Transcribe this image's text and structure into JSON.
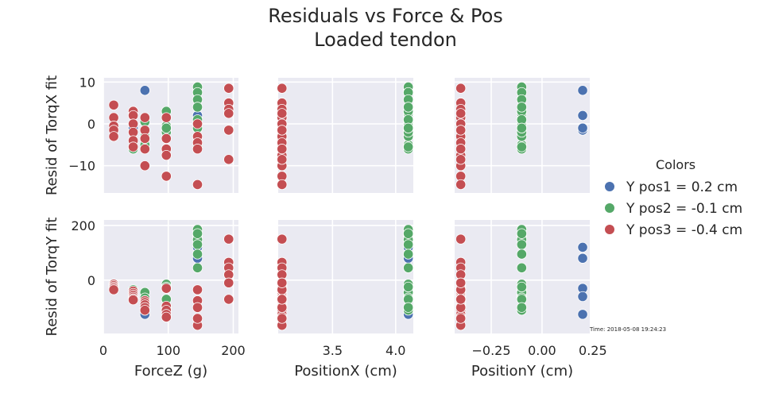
{
  "title_line1": "Residuals vs Force & Pos",
  "title_line2": "Loaded tendon",
  "timestamp": "Time: 2018-05-08 19:24:23",
  "legend": {
    "title": "Colors",
    "items": [
      {
        "label": "Y pos1 = 0.2 cm",
        "color": "#4c72b0"
      },
      {
        "label": "Y pos2 = -0.1 cm",
        "color": "#55a868"
      },
      {
        "label": "Y pos3 = -0.4 cm",
        "color": "#c44e52"
      }
    ]
  },
  "colors": {
    "plot_bg": "#eaeaf2",
    "grid": "#ffffff",
    "text": "#262626"
  },
  "chart_data": {
    "type": "scatter",
    "title": "Residuals vs Force & Pos\nLoaded tendon",
    "x_columns": [
      {
        "label": "ForceZ (g)",
        "ticks": [
          0,
          100,
          200
        ],
        "tick_labels": [
          "0",
          "100",
          "200"
        ],
        "xlim": [
          0,
          208
        ]
      },
      {
        "label": "PositionX (cm)",
        "ticks": [
          3.5,
          4.0
        ],
        "tick_labels": [
          "3.5",
          "4.0"
        ],
        "xlim": [
          3.07,
          4.14
        ]
      },
      {
        "label": "PositionY (cm)",
        "ticks": [
          -0.25,
          0.0,
          0.25
        ],
        "tick_labels": [
          "−0.25",
          "0.00",
          "0.25"
        ],
        "xlim": [
          -0.43,
          0.235
        ]
      }
    ],
    "y_rows": [
      {
        "label": "Resid of TorqX fit",
        "ticks": [
          -10,
          0,
          10
        ],
        "tick_labels": [
          "−10",
          "0",
          "10"
        ],
        "ylim": [
          -16.5,
          11
        ]
      },
      {
        "label": "Resid of TorqY fit",
        "ticks": [
          0,
          200
        ],
        "tick_labels": [
          "0",
          "200"
        ],
        "ylim": [
          -195,
          220
        ]
      }
    ],
    "series": [
      {
        "name": "Y pos1 = 0.2 cm",
        "color": "#4c72b0",
        "posX": 4.1,
        "posY": 0.2,
        "points": [
          {
            "force": 64,
            "rx": 8.0,
            "ry": -125
          },
          {
            "force": 145,
            "rx": 2.0,
            "ry": 80
          },
          {
            "force": 145,
            "rx": -1.0,
            "ry": 120
          },
          {
            "force": 97,
            "rx": -1.5,
            "ry": -30
          },
          {
            "force": 46,
            "rx": -1.0,
            "ry": -60
          }
        ]
      },
      {
        "name": "Y pos2 = -0.1 cm",
        "color": "#55a868",
        "posX": 4.1,
        "posY": -0.1,
        "points": [
          {
            "force": 46,
            "rx": -6.0,
            "ry": -35
          },
          {
            "force": 46,
            "rx": 2.5,
            "ry": -55
          },
          {
            "force": 64,
            "rx": 0.5,
            "ry": -45
          },
          {
            "force": 64,
            "rx": -5.0,
            "ry": -65
          },
          {
            "force": 64,
            "rx": -3.0,
            "ry": -110
          },
          {
            "force": 97,
            "rx": 3.0,
            "ry": -15
          },
          {
            "force": 97,
            "rx": -0.5,
            "ry": -25
          },
          {
            "force": 97,
            "rx": -2.0,
            "ry": -70
          },
          {
            "force": 97,
            "rx": -1.0,
            "ry": -100
          },
          {
            "force": 145,
            "rx": 8.8,
            "ry": 185
          },
          {
            "force": 145,
            "rx": 7.5,
            "ry": 165
          },
          {
            "force": 145,
            "rx": 5.8,
            "ry": 148
          },
          {
            "force": 145,
            "rx": 4.0,
            "ry": 130
          },
          {
            "force": 145,
            "rx": 1.0,
            "ry": 45
          },
          {
            "force": 145,
            "rx": -1.0,
            "ry": 95
          },
          {
            "force": 145,
            "rx": -5.5,
            "ry": 170
          }
        ]
      },
      {
        "name": "Y pos3 = -0.4 cm",
        "color": "#c44e52",
        "posX": 3.1,
        "posY": -0.4,
        "points": [
          {
            "force": 16,
            "rx": 4.5,
            "ry": -15
          },
          {
            "force": 16,
            "rx": 1.5,
            "ry": -20
          },
          {
            "force": 16,
            "rx": -0.5,
            "ry": -25
          },
          {
            "force": 16,
            "rx": -1.5,
            "ry": -30
          },
          {
            "force": 16,
            "rx": -3.0,
            "ry": -35
          },
          {
            "force": 46,
            "rx": 3.0,
            "ry": -40
          },
          {
            "force": 46,
            "rx": 2.0,
            "ry": -48
          },
          {
            "force": 46,
            "rx": 0.0,
            "ry": -55
          },
          {
            "force": 46,
            "rx": -2.0,
            "ry": -62
          },
          {
            "force": 46,
            "rx": -4.0,
            "ry": -68
          },
          {
            "force": 46,
            "rx": -5.5,
            "ry": -72
          },
          {
            "force": 64,
            "rx": 1.5,
            "ry": -75
          },
          {
            "force": 64,
            "rx": -1.5,
            "ry": -82
          },
          {
            "force": 64,
            "rx": -3.5,
            "ry": -90
          },
          {
            "force": 64,
            "rx": -6.0,
            "ry": -100
          },
          {
            "force": 64,
            "rx": -10.0,
            "ry": -110
          },
          {
            "force": 97,
            "rx": 1.5,
            "ry": -30
          },
          {
            "force": 97,
            "rx": -3.5,
            "ry": -95
          },
          {
            "force": 97,
            "rx": -6.0,
            "ry": -110
          },
          {
            "force": 97,
            "rx": -7.5,
            "ry": -125
          },
          {
            "force": 97,
            "rx": -12.5,
            "ry": -135
          },
          {
            "force": 145,
            "rx": -3.0,
            "ry": -35
          },
          {
            "force": 145,
            "rx": -4.5,
            "ry": -75
          },
          {
            "force": 145,
            "rx": -6.0,
            "ry": -100
          },
          {
            "force": 145,
            "rx": -14.5,
            "ry": -165
          },
          {
            "force": 145,
            "rx": 0.0,
            "ry": -140
          },
          {
            "force": 193,
            "rx": 8.5,
            "ry": 150
          },
          {
            "force": 193,
            "rx": 5.0,
            "ry": 65
          },
          {
            "force": 193,
            "rx": 3.5,
            "ry": 45
          },
          {
            "force": 193,
            "rx": 2.5,
            "ry": 20
          },
          {
            "force": 193,
            "rx": -1.5,
            "ry": -10
          },
          {
            "force": 193,
            "rx": -8.5,
            "ry": -70
          }
        ]
      }
    ]
  }
}
